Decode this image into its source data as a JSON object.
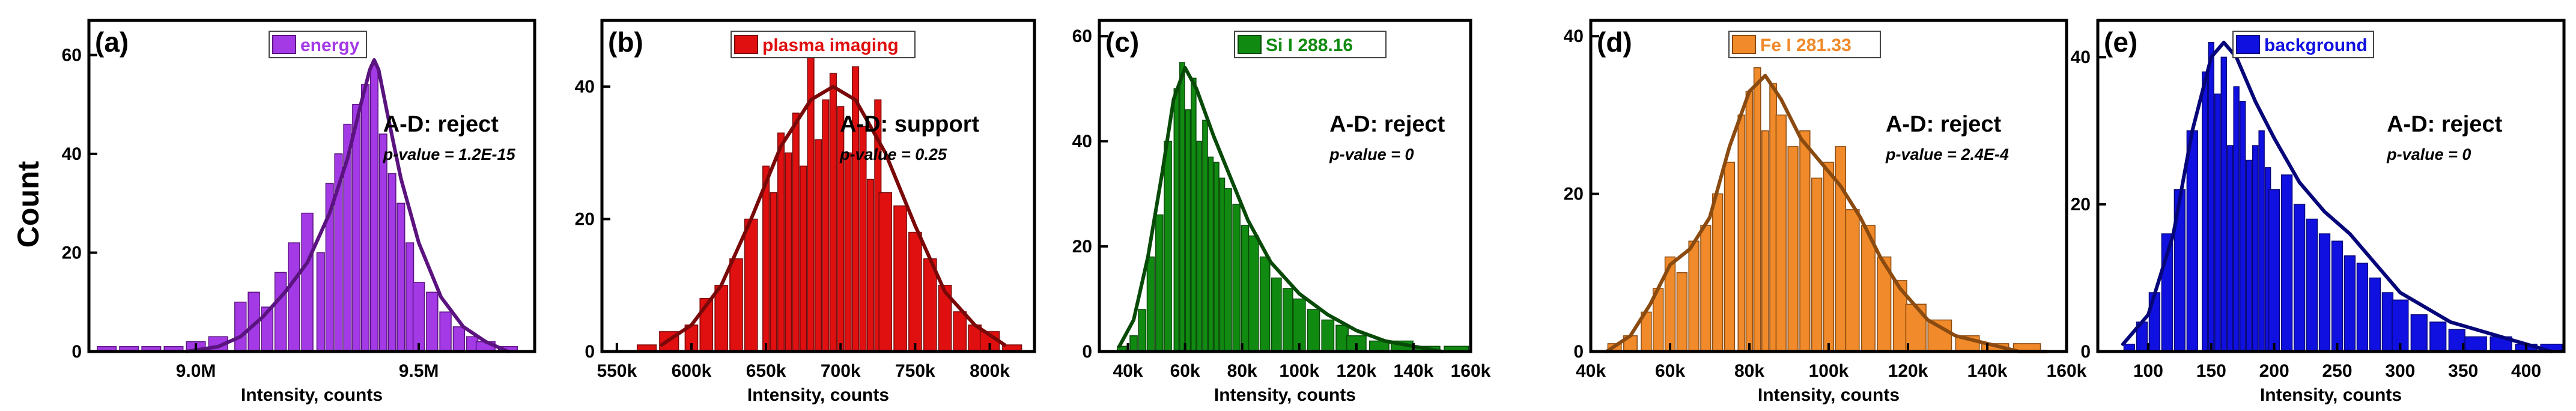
{
  "figure": {
    "shared_ylabel": "Count",
    "shared_xlabel": "Intensity, counts"
  },
  "chart_data": [
    {
      "type": "bar",
      "panel_label": "(a)",
      "legend": "energy",
      "color": "#a33ae6",
      "edge_color": "#5a137f",
      "xlim": [
        8760000,
        9760000
      ],
      "ylim": [
        0,
        67
      ],
      "xticks": [
        9000000,
        9500000
      ],
      "xtick_labels": [
        "9.0M",
        "9.5M"
      ],
      "yticks": [
        0,
        20,
        40,
        60
      ],
      "ytick_labels": [
        "0",
        "20",
        "40",
        "60"
      ],
      "xlabel": "Intensity, counts",
      "ylabel": "Count",
      "test_result": "A-D: reject",
      "p_value_text": "p-value = 1.2E-15",
      "fit_curve": {
        "x": [
          8980000,
          9050000,
          9100000,
          9150000,
          9200000,
          9250000,
          9300000,
          9340000,
          9370000,
          9390000,
          9400000,
          9410000,
          9430000,
          9460000,
          9500000,
          9550000,
          9600000,
          9650000,
          9700000
        ],
        "y": [
          0,
          1,
          3,
          7,
          12,
          18,
          28,
          39,
          50,
          57,
          59,
          57,
          48,
          35,
          22,
          11,
          5,
          2,
          0
        ]
      },
      "bins": {
        "x": [
          8800000,
          8850000,
          8900000,
          8950000,
          9000000,
          9050000,
          9100000,
          9130000,
          9160000,
          9190000,
          9220000,
          9250000,
          9280000,
          9300000,
          9320000,
          9340000,
          9360000,
          9380000,
          9400000,
          9420000,
          9440000,
          9460000,
          9480000,
          9500000,
          9530000,
          9560000,
          9590000,
          9620000,
          9650000,
          9700000
        ],
        "y": [
          1,
          1,
          1,
          1,
          2,
          3,
          10,
          12,
          9,
          16,
          22,
          28,
          20,
          34,
          40,
          46,
          50,
          54,
          58,
          44,
          36,
          30,
          22,
          14,
          12,
          8,
          5,
          3,
          2,
          1
        ]
      }
    },
    {
      "type": "bar",
      "panel_label": "(b)",
      "legend": "plasma imaging",
      "color": "#e01010",
      "edge_color": "#7a0808",
      "xlim": [
        540000,
        830000
      ],
      "ylim": [
        0,
        50
      ],
      "xticks": [
        550000,
        600000,
        650000,
        700000,
        750000,
        800000
      ],
      "xtick_labels": [
        "550k",
        "600k",
        "650k",
        "700k",
        "750k",
        "800k"
      ],
      "yticks": [
        0,
        20,
        40
      ],
      "ytick_labels": [
        "0",
        "20",
        "40"
      ],
      "xlabel": "Intensity, counts",
      "ylabel": "Count",
      "test_result": "A-D: support",
      "p_value_text": "p-value = 0.25",
      "fit_curve": {
        "x": [
          580000,
          600000,
          620000,
          640000,
          660000,
          680000,
          695000,
          710000,
          730000,
          750000,
          770000,
          790000,
          810000
        ],
        "y": [
          1,
          4,
          10,
          20,
          31,
          38,
          40,
          38,
          30,
          19,
          9,
          4,
          1
        ]
      },
      "bins": {
        "x": [
          570000,
          585000,
          600000,
          610000,
          620000,
          630000,
          640000,
          650000,
          655000,
          660000,
          665000,
          670000,
          675000,
          680000,
          685000,
          690000,
          695000,
          700000,
          705000,
          710000,
          715000,
          720000,
          725000,
          730000,
          740000,
          750000,
          760000,
          770000,
          780000,
          790000,
          800000,
          815000
        ],
        "y": [
          1,
          3,
          4,
          8,
          10,
          14,
          20,
          28,
          24,
          33,
          30,
          36,
          28,
          45,
          32,
          38,
          42,
          37,
          30,
          43,
          34,
          26,
          38,
          24,
          22,
          18,
          14,
          10,
          6,
          4,
          3,
          1
        ]
      }
    },
    {
      "type": "bar",
      "panel_label": "(c)",
      "legend": "Si I 288.16",
      "color": "#118a11",
      "edge_color": "#084a08",
      "xlim": [
        30000,
        160000
      ],
      "ylim": [
        0,
        63
      ],
      "xticks": [
        40000,
        60000,
        80000,
        100000,
        120000,
        140000,
        160000
      ],
      "xtick_labels": [
        "40k",
        "60k",
        "80k",
        "100k",
        "120k",
        "140k",
        "160k"
      ],
      "yticks": [
        0,
        20,
        40,
        60
      ],
      "ytick_labels": [
        "0",
        "20",
        "40",
        "60"
      ],
      "xlabel": "Intensity, counts",
      "ylabel": "Count",
      "test_result": "A-D: reject",
      "p_value_text": "p-value = 0",
      "fit_curve": {
        "x": [
          37000,
          42000,
          47000,
          52000,
          56000,
          60000,
          64000,
          70000,
          76000,
          82000,
          90000,
          100000,
          110000,
          120000,
          130000,
          140000,
          150000
        ],
        "y": [
          1,
          6,
          18,
          34,
          48,
          54,
          50,
          41,
          33,
          25,
          17,
          11,
          7,
          4,
          2,
          1,
          0
        ]
      },
      "bins": {
        "x": [
          38000,
          42000,
          45000,
          48000,
          51000,
          54000,
          57000,
          59000,
          61000,
          63000,
          65000,
          67000,
          69000,
          71000,
          73000,
          75000,
          78000,
          81000,
          84000,
          88000,
          92000,
          96000,
          100000,
          105000,
          110000,
          115000,
          120000,
          128000,
          136000,
          145000,
          155000
        ],
        "y": [
          1,
          3,
          8,
          18,
          26,
          40,
          50,
          55,
          46,
          52,
          40,
          44,
          37,
          36,
          33,
          31,
          28,
          24,
          22,
          18,
          14,
          12,
          10,
          8,
          6,
          5,
          3,
          2,
          2,
          1,
          1
        ]
      }
    },
    {
      "type": "bar",
      "panel_label": "(d)",
      "legend": "Fe I 281.33",
      "color": "#f08a2a",
      "edge_color": "#8a4a10",
      "xlim": [
        40000,
        160000
      ],
      "ylim": [
        0,
        42
      ],
      "xticks": [
        40000,
        60000,
        80000,
        100000,
        120000,
        140000,
        160000
      ],
      "xtick_labels": [
        "40k",
        "60k",
        "80k",
        "100k",
        "120k",
        "140k",
        "160k"
      ],
      "yticks": [
        0,
        20,
        40
      ],
      "ytick_labels": [
        "0",
        "20",
        "40"
      ],
      "xlabel": "Intensity, counts",
      "ylabel": "Count",
      "test_result": "A-D: reject",
      "p_value_text": "p-value = 2.4E-4",
      "fit_curve": {
        "x": [
          44000,
          50000,
          55000,
          60000,
          65000,
          70000,
          75000,
          80000,
          84000,
          88000,
          93000,
          98000,
          103000,
          108000,
          113000,
          118000,
          125000,
          132000,
          140000,
          148000,
          155000
        ],
        "y": [
          0,
          2,
          6,
          11,
          13,
          17,
          26,
          33,
          35,
          32,
          27,
          24,
          21,
          17,
          12,
          8,
          4,
          2,
          1,
          0,
          0
        ]
      },
      "bins": {
        "x": [
          46000,
          50000,
          54000,
          57000,
          60000,
          63000,
          66000,
          69000,
          72000,
          75000,
          78000,
          80000,
          82000,
          84000,
          86000,
          88000,
          91000,
          94000,
          97000,
          100000,
          103000,
          106000,
          110000,
          114000,
          118000,
          122000,
          128000,
          135000,
          142000,
          150000
        ],
        "y": [
          1,
          2,
          5,
          8,
          12,
          10,
          14,
          16,
          20,
          24,
          30,
          33,
          36,
          28,
          34,
          30,
          26,
          28,
          22,
          24,
          26,
          18,
          16,
          12,
          9,
          6,
          4,
          2,
          1,
          1
        ]
      }
    },
    {
      "type": "bar",
      "panel_label": "(e)",
      "legend": "background",
      "color": "#1010e0",
      "edge_color": "#06067a",
      "xlim": [
        60,
        430
      ],
      "ylim": [
        0,
        45
      ],
      "xticks": [
        100,
        150,
        200,
        250,
        300,
        350,
        400
      ],
      "xtick_labels": [
        "100",
        "150",
        "200",
        "250",
        "300",
        "350",
        "400"
      ],
      "yticks": [
        0,
        20,
        40
      ],
      "ytick_labels": [
        "0",
        "20",
        "40"
      ],
      "xlabel": "Intensity, counts",
      "ylabel": "Count",
      "test_result": "A-D: reject",
      "p_value_text": "p-value = 0",
      "fit_curve": {
        "x": [
          80,
          100,
          120,
          135,
          150,
          160,
          170,
          185,
          200,
          220,
          240,
          260,
          280,
          300,
          320,
          340,
          360,
          380,
          400,
          420
        ],
        "y": [
          1,
          5,
          16,
          30,
          40,
          42,
          40,
          34,
          29,
          23,
          19,
          16,
          12,
          8,
          6,
          4,
          3,
          2,
          1,
          0
        ]
      },
      "bins": {
        "x": [
          85,
          95,
          105,
          115,
          125,
          135,
          145,
          150,
          155,
          160,
          165,
          170,
          175,
          180,
          185,
          190,
          195,
          200,
          210,
          220,
          230,
          240,
          250,
          260,
          270,
          280,
          290,
          300,
          315,
          330,
          345,
          360,
          380,
          400,
          420
        ],
        "y": [
          1,
          4,
          8,
          16,
          22,
          30,
          38,
          42,
          35,
          40,
          28,
          36,
          34,
          26,
          28,
          30,
          25,
          22,
          24,
          20,
          18,
          16,
          15,
          13,
          12,
          10,
          8,
          7,
          5,
          4,
          3,
          2,
          2,
          1,
          1
        ]
      }
    }
  ]
}
